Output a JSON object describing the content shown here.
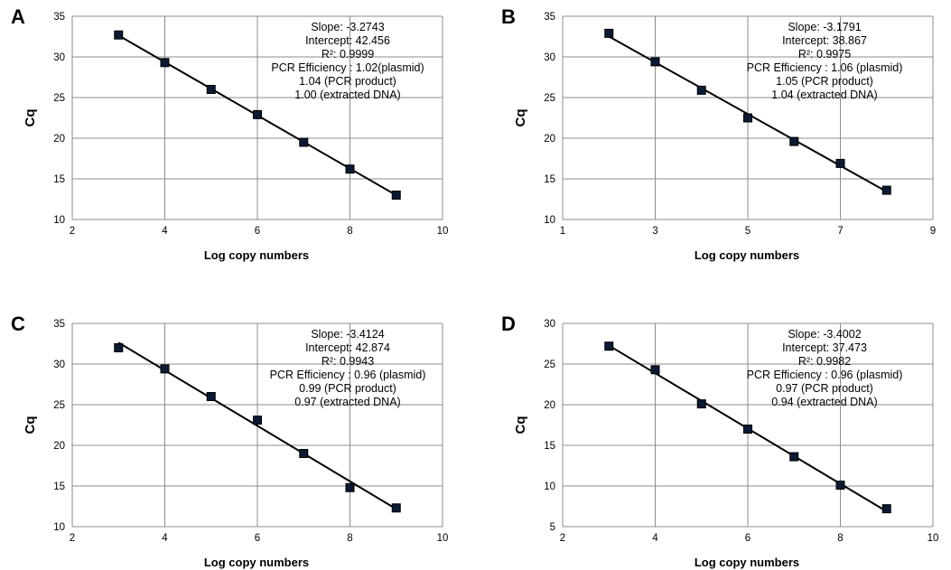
{
  "chart_data": [
    {
      "panel": "A",
      "type": "scatter",
      "xlabel": "Log copy numbers",
      "ylabel": "Cq",
      "xlim": [
        2,
        10
      ],
      "ylim": [
        10,
        35
      ],
      "xticks": [
        "2",
        "4",
        "6",
        "8",
        "10"
      ],
      "yticks": [
        "10",
        "15",
        "20",
        "25",
        "30",
        "35"
      ],
      "grid": true,
      "series": [
        {
          "x": [
            3,
            4,
            5,
            6,
            7,
            8,
            9
          ],
          "y": [
            32.7,
            29.3,
            26.0,
            22.9,
            19.5,
            16.2,
            13.0
          ]
        }
      ],
      "trendline": {
        "slope": -3.2743,
        "intercept": 42.456
      },
      "annotations": [
        "Slope: -3.2743",
        "Intercept: 42.456",
        "R²: 0.9999",
        "PCR Efficiency : 1.02(plasmid)",
        "1.04 (PCR product)",
        "1.00 (extracted DNA)"
      ]
    },
    {
      "panel": "B",
      "type": "scatter",
      "xlabel": "Log copy numbers",
      "ylabel": "Cq",
      "xlim": [
        1,
        9
      ],
      "ylim": [
        10,
        35
      ],
      "xticks": [
        "1",
        "3",
        "5",
        "7",
        "9"
      ],
      "yticks": [
        "10",
        "15",
        "20",
        "25",
        "30",
        "35"
      ],
      "grid": true,
      "series": [
        {
          "x": [
            2,
            3,
            4,
            5,
            6,
            7,
            8
          ],
          "y": [
            32.9,
            29.4,
            25.9,
            22.5,
            19.6,
            16.9,
            13.6
          ]
        }
      ],
      "trendline": {
        "slope": -3.1791,
        "intercept": 38.867
      },
      "annotations": [
        "Slope: -3.1791",
        "Intercept: 38.867",
        "R²: 0.9975",
        "PCR Efficiency : 1.06 (plasmid)",
        "1.05 (PCR product)",
        "1.04 (extracted DNA)"
      ]
    },
    {
      "panel": "C",
      "type": "scatter",
      "xlabel": "Log copy numbers",
      "ylabel": "Cq",
      "xlim": [
        2,
        10
      ],
      "ylim": [
        10,
        35
      ],
      "xticks": [
        "2",
        "4",
        "6",
        "8",
        "10"
      ],
      "yticks": [
        "10",
        "15",
        "20",
        "25",
        "30",
        "35"
      ],
      "grid": true,
      "series": [
        {
          "x": [
            3,
            4,
            5,
            6,
            7,
            8,
            9
          ],
          "y": [
            32.0,
            29.4,
            26.0,
            23.1,
            19.0,
            14.8,
            12.3
          ]
        }
      ],
      "trendline": {
        "slope": -3.4124,
        "intercept": 42.874
      },
      "annotations": [
        "Slope: -3.4124",
        "Intercept: 42.874",
        "R²: 0.9943",
        "PCR Efficiency : 0.96 (plasmid)",
        "0.99 (PCR product)",
        "0.97 (extracted DNA)"
      ]
    },
    {
      "panel": "D",
      "type": "scatter",
      "xlabel": "Log copy numbers",
      "ylabel": "Cq",
      "xlim": [
        2,
        10
      ],
      "ylim": [
        5,
        30
      ],
      "xticks": [
        "2",
        "4",
        "6",
        "8",
        "10"
      ],
      "yticks": [
        "5",
        "10",
        "15",
        "20",
        "25",
        "30"
      ],
      "grid": true,
      "series": [
        {
          "x": [
            3,
            4,
            5,
            6,
            7,
            8,
            9
          ],
          "y": [
            27.2,
            24.3,
            20.1,
            17.0,
            13.6,
            10.1,
            7.2
          ]
        }
      ],
      "trendline": {
        "slope": -3.4002,
        "intercept": 37.473
      },
      "annotations": [
        "Slope: -3.4002",
        "Intercept: 37.473",
        "R²: 0.9982",
        "PCR Efficiency : 0.96 (plasmid)",
        "0.97 (PCR product)",
        "0.94 (extracted DNA)"
      ]
    }
  ]
}
